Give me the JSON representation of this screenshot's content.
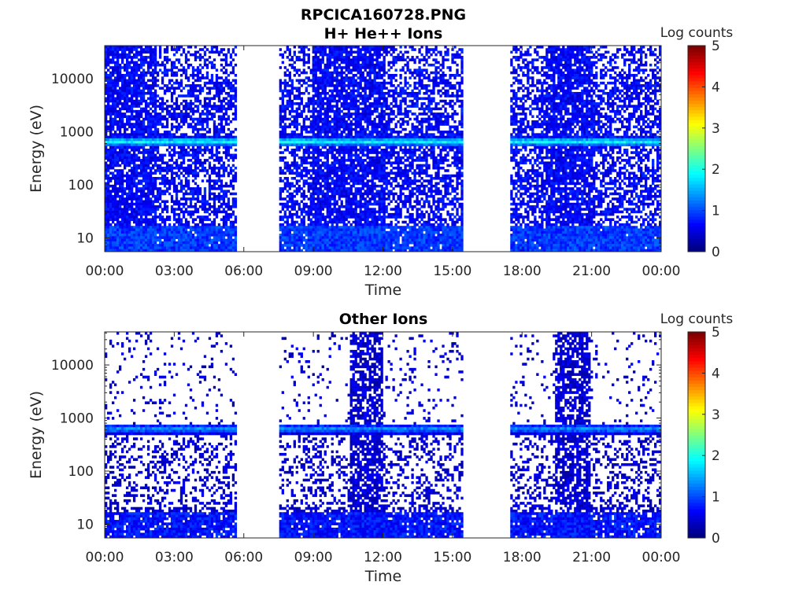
{
  "figure": {
    "title": "RPCICA160728.PNG"
  },
  "chart_data": [
    {
      "type": "heatmap",
      "title": "H+ He++ Ions",
      "xlabel": "Time",
      "ylabel": "Energy (eV)",
      "x_tick_labels": [
        "00:00",
        "03:00",
        "06:00",
        "09:00",
        "12:00",
        "15:00",
        "18:00",
        "21:00",
        "00:00"
      ],
      "x_ticks_hours": [
        0,
        3,
        6,
        9,
        12,
        15,
        18,
        21,
        24
      ],
      "xlim_hours": [
        0,
        24
      ],
      "yscale": "log",
      "ylim": [
        5.5,
        42000
      ],
      "y_ticks": [
        10,
        100,
        1000,
        10000
      ],
      "y_tick_labels": [
        "10",
        "100",
        "1000",
        "10000"
      ],
      "colorbar": {
        "label": "Log counts",
        "range": [
          0,
          5
        ],
        "ticks": [
          "0",
          "1",
          "2",
          "3",
          "4",
          "5"
        ],
        "colormap": "jet"
      },
      "data_intervals_hours": [
        [
          0.0,
          5.65
        ],
        [
          7.55,
          15.5
        ],
        [
          17.5,
          24.0
        ]
      ],
      "data_gaps_hours": [
        [
          5.65,
          7.55
        ],
        [
          15.5,
          17.5
        ]
      ],
      "high_energy_bursts_hours": [
        [
          0.0,
          2.2
        ],
        [
          9.0,
          12.1
        ],
        [
          15.35,
          15.5
        ],
        [
          19.0,
          21.1
        ]
      ],
      "energy_band_eV": 650,
      "energy_band_level_log_counts": 2,
      "background_level_log_counts": 0.6
    },
    {
      "type": "heatmap",
      "title": "Other Ions",
      "xlabel": "Time",
      "ylabel": "Energy (eV)",
      "x_tick_labels": [
        "00:00",
        "03:00",
        "06:00",
        "09:00",
        "12:00",
        "15:00",
        "18:00",
        "21:00",
        "00:00"
      ],
      "x_ticks_hours": [
        0,
        3,
        6,
        9,
        12,
        15,
        18,
        21,
        24
      ],
      "xlim_hours": [
        0,
        24
      ],
      "yscale": "log",
      "ylim": [
        5.5,
        42000
      ],
      "y_ticks": [
        10,
        100,
        1000,
        10000
      ],
      "y_tick_labels": [
        "10",
        "100",
        "1000",
        "10000"
      ],
      "colorbar": {
        "label": "Log counts",
        "range": [
          0,
          5
        ],
        "ticks": [
          "0",
          "1",
          "2",
          "3",
          "4",
          "5"
        ],
        "colormap": "jet"
      },
      "data_intervals_hours": [
        [
          0.0,
          5.65
        ],
        [
          7.55,
          15.5
        ],
        [
          17.5,
          24.0
        ]
      ],
      "data_gaps_hours": [
        [
          5.65,
          7.55
        ],
        [
          15.5,
          17.5
        ]
      ],
      "high_energy_bursts_hours": [
        [
          10.55,
          11.95
        ],
        [
          19.4,
          21.0
        ]
      ],
      "energy_band_eV": 620,
      "energy_band_level_log_counts": 1.4,
      "background_level_log_counts": 0.4
    }
  ]
}
